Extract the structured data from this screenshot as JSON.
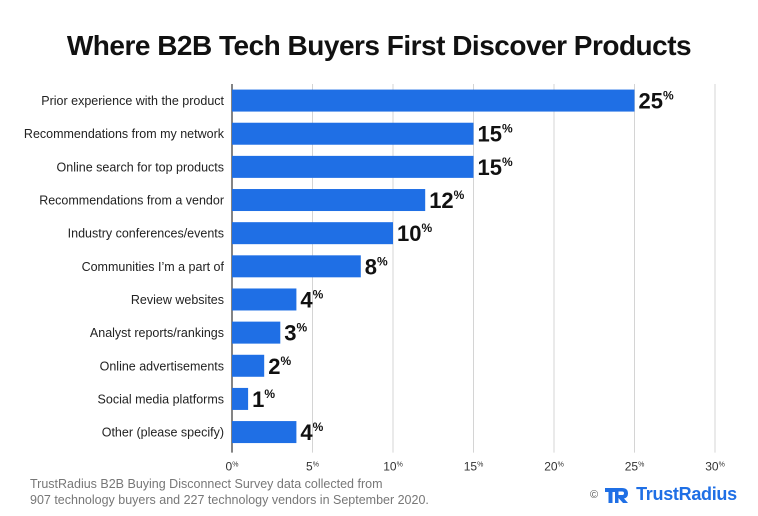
{
  "chart_data": {
    "type": "bar",
    "orientation": "horizontal",
    "title": "Where B2B Tech Buyers First Discover Products",
    "categories": [
      "Prior experience with the product",
      "Recommendations from my network",
      "Online search for top products",
      "Recommendations from a vendor",
      "Industry conferences/events",
      "Communities I’m a part of",
      "Review websites",
      "Analyst reports/rankings",
      "Online advertisements",
      "Social media platforms",
      "Other (please specify)"
    ],
    "values": [
      25,
      15,
      15,
      12,
      10,
      8,
      4,
      3,
      2,
      1,
      4
    ],
    "value_suffix": "%",
    "xlim": [
      0,
      30
    ],
    "xticks": [
      0,
      5,
      10,
      15,
      20,
      25,
      30
    ],
    "tick_suffix": "%",
    "xlabel": "",
    "ylabel": "",
    "grid": true,
    "bar_color": "#1f6fe5"
  },
  "footnote": {
    "line1": "TrustRadius B2B Buying Disconnect Survey data collected from",
    "line2": "907 technology buyers and 227 technology vendors in September 2020."
  },
  "brand": {
    "copyright": "©",
    "name": "TrustRadius",
    "color": "#1f6fe5"
  }
}
